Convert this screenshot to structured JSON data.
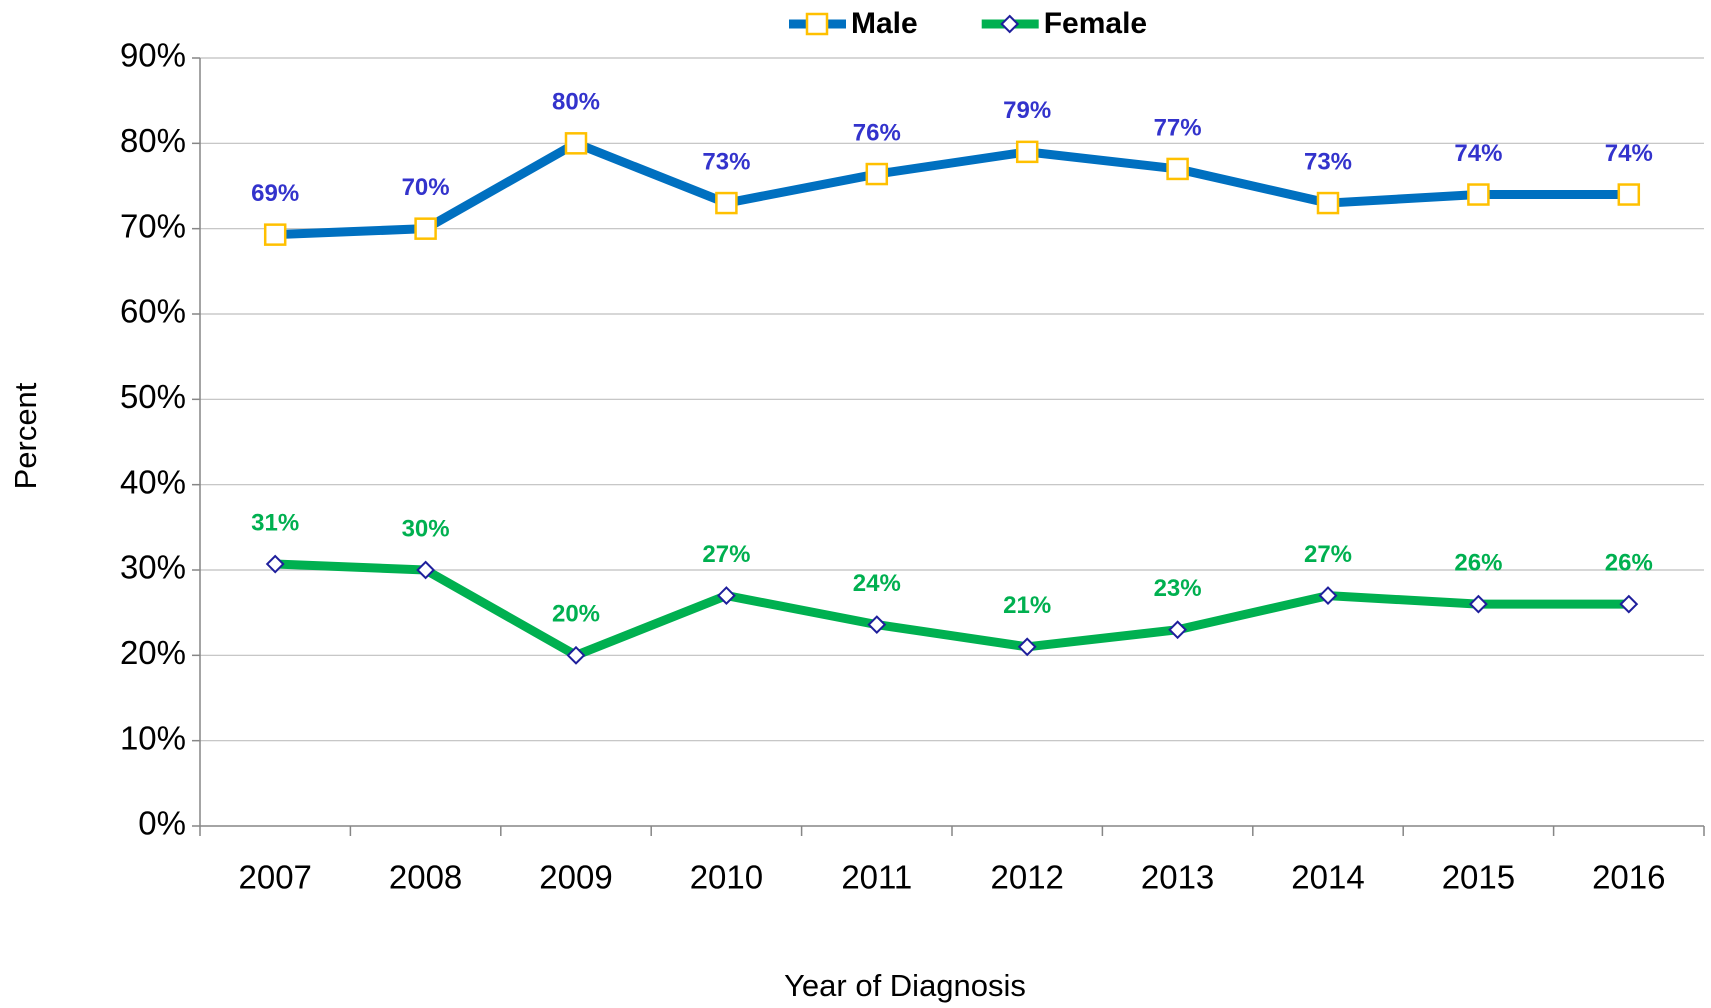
{
  "chart_data": {
    "type": "line",
    "y_label": "Percent",
    "x_label": "Year of Diagnosis",
    "categories": [
      "2007",
      "2008",
      "2009",
      "2010",
      "2011",
      "2012",
      "2013",
      "2014",
      "2015",
      "2016"
    ],
    "series": [
      {
        "name": "Male",
        "color": "#0070c0",
        "marker_color": "#ffc000",
        "label_color": "#3333cc",
        "marker": "square",
        "values": [
          69.3,
          70,
          80,
          73,
          76.4,
          79,
          77,
          73,
          74,
          74
        ],
        "value_labels": [
          "69%",
          "70%",
          "80%",
          "73%",
          "76%",
          "79%",
          "77%",
          "73%",
          "74%",
          "74%"
        ]
      },
      {
        "name": "Female",
        "color": "#00b050",
        "marker_color": "#1f1f9c",
        "label_color": "#00b050",
        "marker": "diamond",
        "values": [
          30.7,
          30,
          20,
          27,
          23.6,
          21,
          23,
          27,
          26,
          26
        ],
        "value_labels": [
          "31%",
          "30%",
          "20%",
          "27%",
          "24%",
          "21%",
          "23%",
          "27%",
          "26%",
          "26%"
        ]
      }
    ],
    "ylim": [
      0,
      90
    ],
    "yticks": [
      {
        "value": 0,
        "label": "0%"
      },
      {
        "value": 10,
        "label": "10%"
      },
      {
        "value": 20,
        "label": "20%"
      },
      {
        "value": 30,
        "label": "30%"
      },
      {
        "value": 40,
        "label": "40%"
      },
      {
        "value": 50,
        "label": "50%"
      },
      {
        "value": 60,
        "label": "60%"
      },
      {
        "value": 70,
        "label": "70%"
      },
      {
        "value": 80,
        "label": "80%"
      },
      {
        "value": 90,
        "label": "90%"
      }
    ],
    "grid": true,
    "legend": "top"
  }
}
